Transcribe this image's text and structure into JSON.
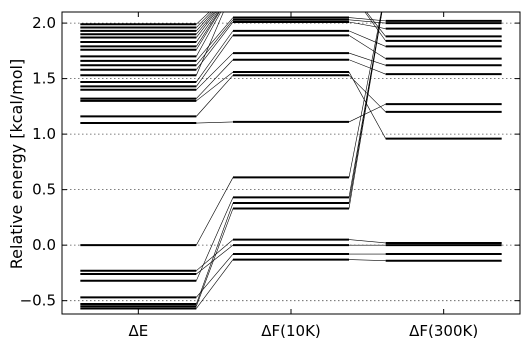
{
  "chart_data": {
    "type": "line",
    "title": "",
    "ylabel": "Relative energy [kcal/mol]",
    "xlabel": "",
    "categories": [
      "ΔE",
      "ΔF(10K)",
      "ΔF(300K)"
    ],
    "ylim": [
      -0.62,
      2.1
    ],
    "yticks": [
      -0.5,
      0.0,
      0.5,
      1.0,
      1.5,
      2.0
    ],
    "ytick_labels": [
      "−0.5",
      "0.0",
      "0.5",
      "1.0",
      "1.5",
      "2.0"
    ],
    "grid": "horizontal dotted",
    "level_color": "#000000",
    "connector_color": "#000000",
    "series": [
      {
        "values": [
          -0.57,
          -0.13,
          -0.14
        ]
      },
      {
        "values": [
          -0.55,
          0.33,
          2.3
        ]
      },
      {
        "values": [
          -0.53,
          0.38,
          2.3
        ]
      },
      {
        "values": [
          -0.47,
          -0.08,
          -0.08
        ]
      },
      {
        "values": [
          -0.32,
          0.43,
          2.3
        ]
      },
      {
        "values": [
          -0.26,
          0.0,
          0.0
        ]
      },
      {
        "values": [
          -0.23,
          0.05,
          0.02
        ]
      },
      {
        "values": [
          0.0,
          0.61,
          2.3
        ]
      },
      {
        "values": [
          1.1,
          1.11,
          1.27
        ]
      },
      {
        "values": [
          1.16,
          1.53,
          1.2
        ]
      },
      {
        "values": [
          1.3,
          1.56,
          0.96
        ]
      },
      {
        "values": [
          1.32,
          1.67,
          1.54
        ]
      },
      {
        "values": [
          1.4,
          1.73,
          1.62
        ]
      },
      {
        "values": [
          1.43,
          1.89,
          1.68
        ]
      },
      {
        "values": [
          1.47,
          1.93,
          1.79
        ]
      },
      {
        "values": [
          1.53,
          2.3,
          1.84
        ]
      },
      {
        "values": [
          1.58,
          2.01,
          1.95
        ]
      },
      {
        "values": [
          1.62,
          2.03,
          2.0
        ]
      },
      {
        "values": [
          1.66,
          2.05,
          2.02
        ]
      },
      {
        "values": [
          1.7,
          2.3,
          1.88
        ]
      },
      {
        "values": [
          1.76,
          2.3,
          2.3
        ]
      },
      {
        "values": [
          1.79,
          2.3,
          2.3
        ]
      },
      {
        "values": [
          1.83,
          2.3,
          2.3
        ]
      },
      {
        "values": [
          1.87,
          2.3,
          2.3
        ]
      },
      {
        "values": [
          1.9,
          2.3,
          2.3
        ]
      },
      {
        "values": [
          1.93,
          2.3,
          2.3
        ]
      },
      {
        "values": [
          1.96,
          2.3,
          2.3
        ]
      },
      {
        "values": [
          1.99,
          2.3,
          2.3
        ]
      }
    ]
  }
}
